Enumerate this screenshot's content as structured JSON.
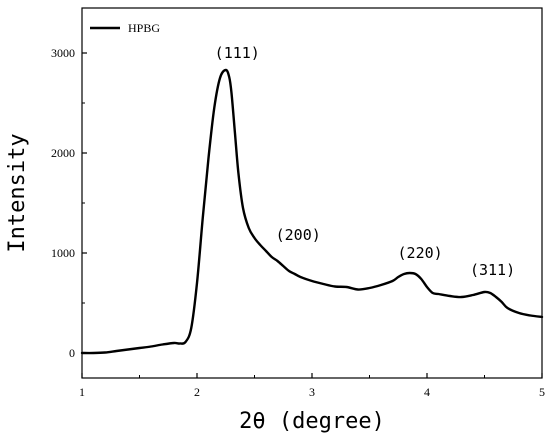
{
  "chart_data": {
    "type": "line",
    "xlabel": "2θ (degree)",
    "ylabel": "Intensity",
    "xlim": [
      1,
      5
    ],
    "ylim": [
      -250,
      3450
    ],
    "xticks": [
      1,
      2,
      3,
      4,
      5
    ],
    "yticks": [
      0,
      1000,
      2000,
      3000
    ],
    "grid": false,
    "legend_position": "top-left",
    "series": [
      {
        "name": "HPBG",
        "color": "#000000",
        "x": [
          1.0,
          1.1,
          1.2,
          1.3,
          1.4,
          1.5,
          1.6,
          1.7,
          1.8,
          1.85,
          1.9,
          1.95,
          2.0,
          2.05,
          2.1,
          2.15,
          2.2,
          2.25,
          2.28,
          2.3,
          2.33,
          2.36,
          2.4,
          2.45,
          2.5,
          2.55,
          2.6,
          2.65,
          2.7,
          2.75,
          2.8,
          2.85,
          2.9,
          3.0,
          3.1,
          3.2,
          3.3,
          3.4,
          3.5,
          3.6,
          3.7,
          3.75,
          3.8,
          3.85,
          3.9,
          3.95,
          4.0,
          4.05,
          4.1,
          4.2,
          4.3,
          4.4,
          4.5,
          4.55,
          4.6,
          4.65,
          4.7,
          4.8,
          4.9,
          5.0
        ],
        "values": [
          0,
          0,
          5,
          20,
          35,
          50,
          65,
          85,
          100,
          95,
          110,
          250,
          700,
          1350,
          1950,
          2450,
          2750,
          2830,
          2760,
          2600,
          2200,
          1800,
          1450,
          1250,
          1150,
          1080,
          1020,
          960,
          920,
          870,
          820,
          790,
          760,
          720,
          690,
          665,
          660,
          635,
          650,
          680,
          720,
          760,
          790,
          800,
          790,
          740,
          660,
          600,
          590,
          570,
          560,
          580,
          610,
          600,
          560,
          510,
          450,
          400,
          375,
          360
        ]
      }
    ],
    "annotations": [
      {
        "text": "(111)",
        "x": 2.35,
        "y": 2950
      },
      {
        "text": "(200)",
        "x": 2.88,
        "y": 1130
      },
      {
        "text": "(220)",
        "x": 3.94,
        "y": 950
      },
      {
        "text": "(311)",
        "x": 4.57,
        "y": 780
      }
    ]
  }
}
